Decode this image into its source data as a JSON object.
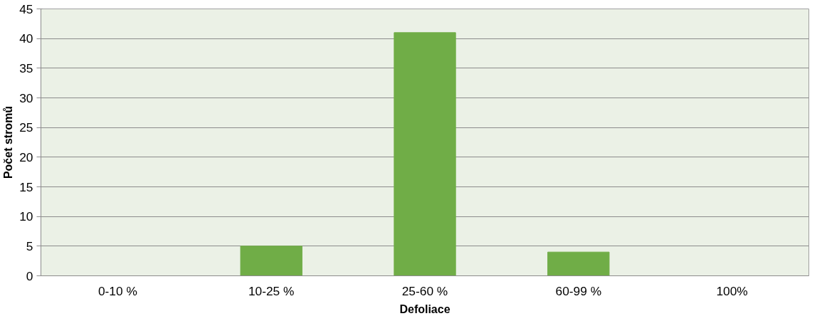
{
  "chart_data": {
    "type": "bar",
    "xlabel": "Defoliace",
    "ylabel": "Počet stromů",
    "categories": [
      "0-10 %",
      "10-25 %",
      "25-60 %",
      "60-99 %",
      "100%"
    ],
    "values": [
      0,
      5,
      41,
      4,
      0
    ],
    "color": "#70ad47",
    "ylim": [
      0,
      45
    ],
    "yticks": [
      0,
      5,
      10,
      15,
      20,
      25,
      30,
      35,
      40,
      45
    ],
    "grid": "y"
  }
}
